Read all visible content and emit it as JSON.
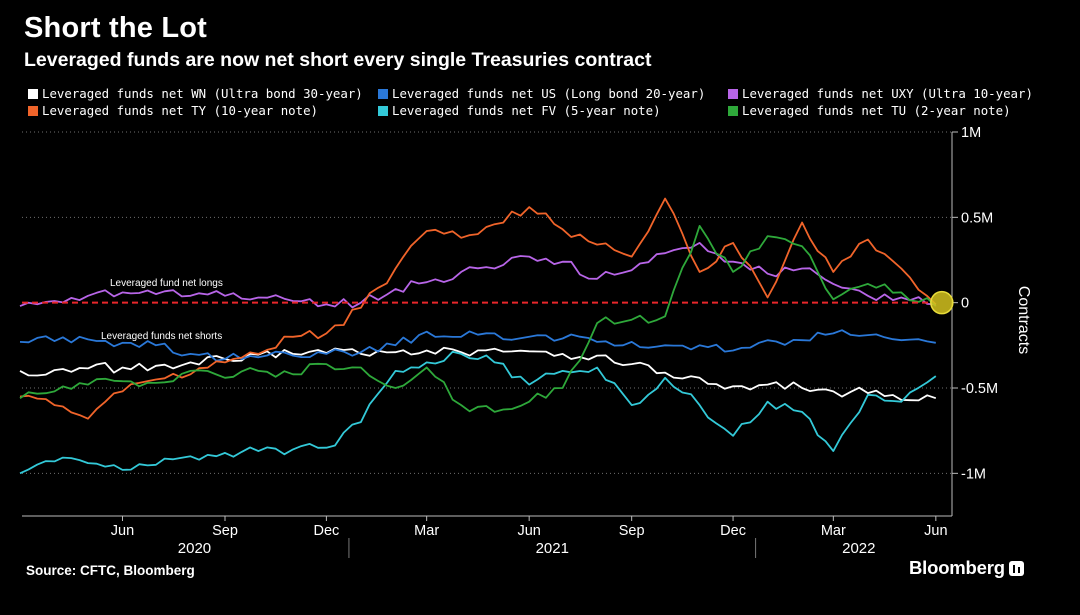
{
  "header": {
    "title": "Short the Lot",
    "subtitle": "Leveraged funds are now net short every single Treasuries contract"
  },
  "footer": {
    "source": "Source: CFTC, Bloomberg",
    "logo_text": "Bloomberg",
    "logo_icon": "bloomberg-terminal-icon"
  },
  "chart_data": {
    "type": "line",
    "title": "Short the Lot",
    "subtitle": "Leveraged funds are now net short every single Treasuries contract",
    "ylabel": "Contracts",
    "xlabel": "",
    "ylim": [
      -1250000,
      1000000
    ],
    "y_ticks": [
      1000000,
      500000,
      0,
      -500000,
      -1000000
    ],
    "y_tick_labels": [
      "1M",
      "0.5M",
      "0",
      "-0.5M",
      "-1M"
    ],
    "x_range": [
      "2020-03",
      "2022-06"
    ],
    "x_ticks": [
      "Jun",
      "Sep",
      "Dec",
      "Mar",
      "Jun",
      "Sep",
      "Dec",
      "Mar",
      "Jun"
    ],
    "x_tick_dates": [
      "2020-06",
      "2020-09",
      "2020-12",
      "2021-03",
      "2021-06",
      "2021-09",
      "2021-12",
      "2022-03",
      "2022-06"
    ],
    "years": [
      "2020",
      "2021",
      "2022"
    ],
    "grid": true,
    "legend_position": "top",
    "zero_line": {
      "value": 0,
      "color": "#e8262b",
      "style": "dashed"
    },
    "annotations": [
      "Leveraged fund net longs",
      "Leveraged funds net shorts"
    ],
    "highlight": {
      "x": "2022-06",
      "y": 0,
      "color": "#d4c21f"
    },
    "series": [
      {
        "name": "Leveraged funds net WN (Ultra bond 30-year)",
        "color": "#ffffff",
        "x": [
          "2020-03",
          "2020-04",
          "2020-05",
          "2020-06",
          "2020-07",
          "2020-08",
          "2020-09",
          "2020-10",
          "2020-11",
          "2020-12",
          "2021-01",
          "2021-02",
          "2021-03",
          "2021-04",
          "2021-05",
          "2021-06",
          "2021-07",
          "2021-08",
          "2021-09",
          "2021-10",
          "2021-11",
          "2021-12",
          "2022-01",
          "2022-02",
          "2022-03",
          "2022-04",
          "2022-05",
          "2022-06"
        ],
        "values": [
          -400000,
          -395000,
          -385000,
          -380000,
          -370000,
          -350000,
          -330000,
          -305000,
          -300000,
          -295000,
          -300000,
          -290000,
          -280000,
          -290000,
          -270000,
          -285000,
          -300000,
          -310000,
          -360000,
          -410000,
          -440000,
          -490000,
          -480000,
          -500000,
          -520000,
          -530000,
          -570000,
          -560000
        ]
      },
      {
        "name": "Leveraged funds net US (Long bond 20-year)",
        "color": "#2a78d8",
        "x": [
          "2020-03",
          "2020-04",
          "2020-05",
          "2020-06",
          "2020-07",
          "2020-08",
          "2020-09",
          "2020-10",
          "2020-11",
          "2020-12",
          "2021-01",
          "2021-02",
          "2021-03",
          "2021-04",
          "2021-05",
          "2021-06",
          "2021-07",
          "2021-08",
          "2021-09",
          "2021-10",
          "2021-11",
          "2021-12",
          "2022-01",
          "2022-02",
          "2022-03",
          "2022-04",
          "2022-05",
          "2022-06"
        ],
        "values": [
          -230000,
          -225000,
          -215000,
          -235000,
          -250000,
          -300000,
          -330000,
          -320000,
          -310000,
          -300000,
          -290000,
          -250000,
          -170000,
          -200000,
          -180000,
          -200000,
          -210000,
          -230000,
          -230000,
          -250000,
          -250000,
          -280000,
          -220000,
          -220000,
          -180000,
          -190000,
          -220000,
          -235000
        ]
      },
      {
        "name": "Leveraged funds net UXY (Ultra 10-year)",
        "color": "#b865e8",
        "x": [
          "2020-03",
          "2020-04",
          "2020-05",
          "2020-06",
          "2020-07",
          "2020-08",
          "2020-09",
          "2020-10",
          "2020-11",
          "2020-12",
          "2021-01",
          "2021-02",
          "2021-03",
          "2021-04",
          "2021-05",
          "2021-06",
          "2021-07",
          "2021-08",
          "2021-09",
          "2021-10",
          "2021-11",
          "2021-12",
          "2022-01",
          "2022-02",
          "2022-03",
          "2022-04",
          "2022-05",
          "2022-06"
        ],
        "values": [
          -20000,
          10000,
          40000,
          60000,
          50000,
          40000,
          40000,
          30000,
          10000,
          -10000,
          0,
          80000,
          120000,
          180000,
          200000,
          270000,
          240000,
          140000,
          190000,
          290000,
          350000,
          240000,
          170000,
          200000,
          110000,
          40000,
          30000,
          -10000
        ]
      },
      {
        "name": "Leveraged funds net TY (10-year note)",
        "color": "#f0642a",
        "x": [
          "2020-03",
          "2020-04",
          "2020-05",
          "2020-06",
          "2020-07",
          "2020-08",
          "2020-09",
          "2020-10",
          "2020-11",
          "2020-12",
          "2021-01",
          "2021-02",
          "2021-03",
          "2021-04",
          "2021-05",
          "2021-06",
          "2021-07",
          "2021-08",
          "2021-09",
          "2021-10",
          "2021-11",
          "2021-12",
          "2022-01",
          "2022-02",
          "2022-03",
          "2022-04",
          "2022-05",
          "2022-06"
        ],
        "values": [
          -550000,
          -600000,
          -680000,
          -520000,
          -450000,
          -420000,
          -350000,
          -300000,
          -200000,
          -180000,
          -30000,
          200000,
          420000,
          380000,
          460000,
          560000,
          430000,
          340000,
          270000,
          610000,
          180000,
          350000,
          30000,
          470000,
          180000,
          370000,
          200000,
          -10000
        ]
      },
      {
        "name": "Leveraged funds net FV (5-year note)",
        "color": "#33c9d8",
        "x": [
          "2020-03",
          "2020-04",
          "2020-05",
          "2020-06",
          "2020-07",
          "2020-08",
          "2020-09",
          "2020-10",
          "2020-11",
          "2020-12",
          "2021-01",
          "2021-02",
          "2021-03",
          "2021-04",
          "2021-05",
          "2021-06",
          "2021-07",
          "2021-08",
          "2021-09",
          "2021-10",
          "2021-11",
          "2021-12",
          "2022-01",
          "2022-02",
          "2022-03",
          "2022-04",
          "2022-05",
          "2022-06"
        ],
        "values": [
          -1000000,
          -930000,
          -940000,
          -980000,
          -950000,
          -900000,
          -880000,
          -870000,
          -860000,
          -850000,
          -700000,
          -400000,
          -350000,
          -300000,
          -350000,
          -480000,
          -400000,
          -380000,
          -600000,
          -440000,
          -600000,
          -780000,
          -580000,
          -640000,
          -870000,
          -540000,
          -580000,
          -430000
        ]
      },
      {
        "name": "Leveraged funds net TU (2-year note)",
        "color": "#2ea83a",
        "x": [
          "2020-03",
          "2020-04",
          "2020-05",
          "2020-06",
          "2020-07",
          "2020-08",
          "2020-09",
          "2020-10",
          "2020-11",
          "2020-12",
          "2021-01",
          "2021-02",
          "2021-03",
          "2021-04",
          "2021-05",
          "2021-06",
          "2021-07",
          "2021-08",
          "2021-09",
          "2021-10",
          "2021-11",
          "2021-12",
          "2022-01",
          "2022-02",
          "2022-03",
          "2022-04",
          "2022-05",
          "2022-06"
        ],
        "values": [
          -560000,
          -520000,
          -480000,
          -460000,
          -470000,
          -400000,
          -440000,
          -400000,
          -420000,
          -360000,
          -380000,
          -500000,
          -380000,
          -600000,
          -640000,
          -580000,
          -500000,
          -120000,
          -100000,
          -80000,
          450000,
          180000,
          390000,
          330000,
          20000,
          110000,
          60000,
          -20000
        ]
      }
    ]
  }
}
